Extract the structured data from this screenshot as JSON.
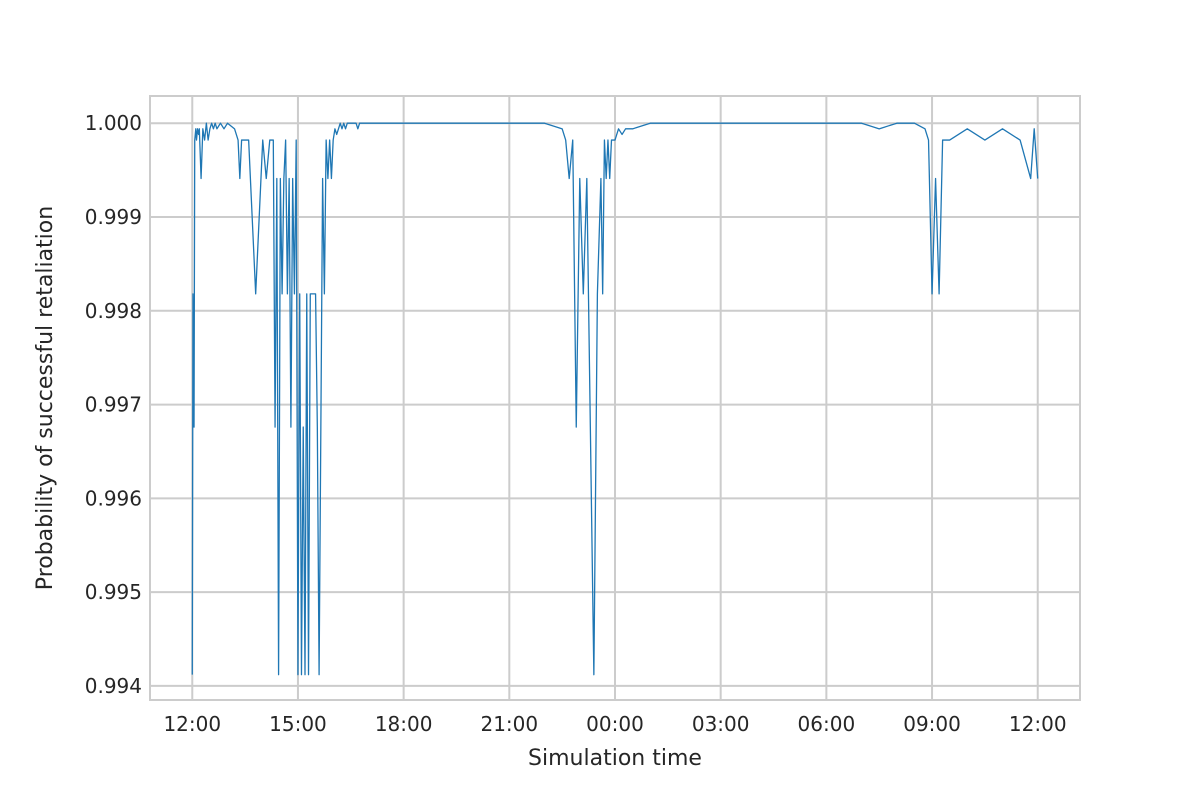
{
  "chart_data": {
    "type": "line",
    "xlabel": "Simulation time",
    "ylabel": "Probability of successful retaliation",
    "x_ticks": [
      "12:00",
      "15:00",
      "18:00",
      "21:00",
      "00:00",
      "03:00",
      "06:00",
      "09:00",
      "12:00"
    ],
    "y_ticks": [
      "0.994",
      "0.995",
      "0.996",
      "0.997",
      "0.998",
      "0.999",
      "1.000"
    ],
    "xlim_hours": [
      -1.2,
      25.2
    ],
    "ylim": [
      0.99385,
      1.00029
    ],
    "grid": true,
    "legend": "none",
    "series": [
      {
        "color": "#1f77b4",
        "x_hours": [
          0.0,
          0.02,
          0.05,
          0.07,
          0.1,
          0.12,
          0.15,
          0.18,
          0.2,
          0.25,
          0.3,
          0.35,
          0.4,
          0.45,
          0.5,
          0.55,
          0.6,
          0.65,
          0.7,
          0.8,
          0.9,
          1.0,
          1.2,
          1.3,
          1.35,
          1.4,
          1.6,
          1.8,
          2.0,
          2.1,
          2.2,
          2.3,
          2.35,
          2.4,
          2.45,
          2.5,
          2.55,
          2.6,
          2.65,
          2.7,
          2.75,
          2.8,
          2.85,
          2.9,
          2.95,
          3.0,
          3.03,
          3.05,
          3.1,
          3.15,
          3.2,
          3.25,
          3.3,
          3.35,
          3.4,
          3.45,
          3.5,
          3.55,
          3.6,
          3.65,
          3.7,
          3.75,
          3.8,
          3.85,
          3.9,
          3.95,
          4.0,
          4.05,
          4.1,
          4.15,
          4.2,
          4.25,
          4.3,
          4.35,
          4.4,
          4.45,
          4.5,
          4.55,
          4.6,
          4.65,
          4.7,
          4.75,
          4.8,
          4.85,
          4.9,
          5.0,
          5.1,
          5.2,
          5.3,
          5.5,
          6.0,
          7.0,
          8.0,
          9.0,
          10.0,
          10.5,
          10.6,
          10.7,
          10.8,
          10.9,
          11.0,
          11.1,
          11.2,
          11.3,
          11.4,
          11.5,
          11.6,
          11.65,
          11.7,
          11.75,
          11.8,
          11.85,
          11.9,
          12.0,
          12.1,
          12.2,
          12.3,
          12.5,
          13.0,
          14.0,
          15.0,
          16.0,
          17.0,
          18.0,
          19.0,
          19.5,
          20.0,
          20.5,
          20.8,
          20.9,
          21.0,
          21.1,
          21.2,
          21.3,
          21.5,
          22.0,
          22.5,
          23.0,
          23.5,
          23.8,
          23.9,
          24.0
        ],
        "values": [
          0.99412,
          0.99818,
          0.99676,
          0.99982,
          0.99994,
          0.99982,
          0.99994,
          0.99988,
          0.99994,
          0.99941,
          0.99994,
          0.99982,
          1.0,
          0.99982,
          0.99994,
          1.0,
          0.99994,
          1.0,
          0.99994,
          1.0,
          0.99994,
          1.0,
          0.99994,
          0.99982,
          0.99941,
          0.99982,
          0.99982,
          0.99818,
          0.99982,
          0.99941,
          0.99982,
          0.99982,
          0.99676,
          0.99941,
          0.99412,
          0.99941,
          0.99818,
          0.99941,
          0.99982,
          0.99818,
          0.99941,
          0.99676,
          0.99941,
          0.99818,
          0.99982,
          0.99412,
          0.99676,
          0.99818,
          0.99412,
          0.99676,
          0.99412,
          0.99818,
          0.99412,
          0.99818,
          0.99818,
          0.99818,
          0.99818,
          0.99676,
          0.99412,
          0.99676,
          0.99941,
          0.99818,
          0.99982,
          0.99941,
          0.99982,
          0.99941,
          0.99982,
          0.99994,
          0.99988,
          0.99994,
          1.0,
          0.99994,
          1.0,
          0.99994,
          1.0,
          1.0,
          1.0,
          1.0,
          1.0,
          1.0,
          0.99994,
          1.0,
          1.0,
          1.0,
          1.0,
          1.0,
          1.0,
          1.0,
          1.0,
          1.0,
          1.0,
          1.0,
          1.0,
          1.0,
          1.0,
          0.99994,
          0.99982,
          0.99941,
          0.99982,
          0.99676,
          0.99941,
          0.99818,
          0.99941,
          0.99676,
          0.99412,
          0.99818,
          0.99941,
          0.99818,
          0.99982,
          0.99941,
          0.99982,
          0.99941,
          0.99982,
          0.99982,
          0.99994,
          0.99988,
          0.99994,
          0.99994,
          1.0,
          1.0,
          1.0,
          1.0,
          1.0,
          1.0,
          1.0,
          0.99994,
          1.0,
          1.0,
          0.99994,
          0.99982,
          0.99818,
          0.99941,
          0.99818,
          0.99982,
          0.99982,
          0.99994,
          0.99982,
          0.99994,
          0.99982,
          0.99941,
          0.99994,
          0.99941
        ]
      }
    ]
  }
}
